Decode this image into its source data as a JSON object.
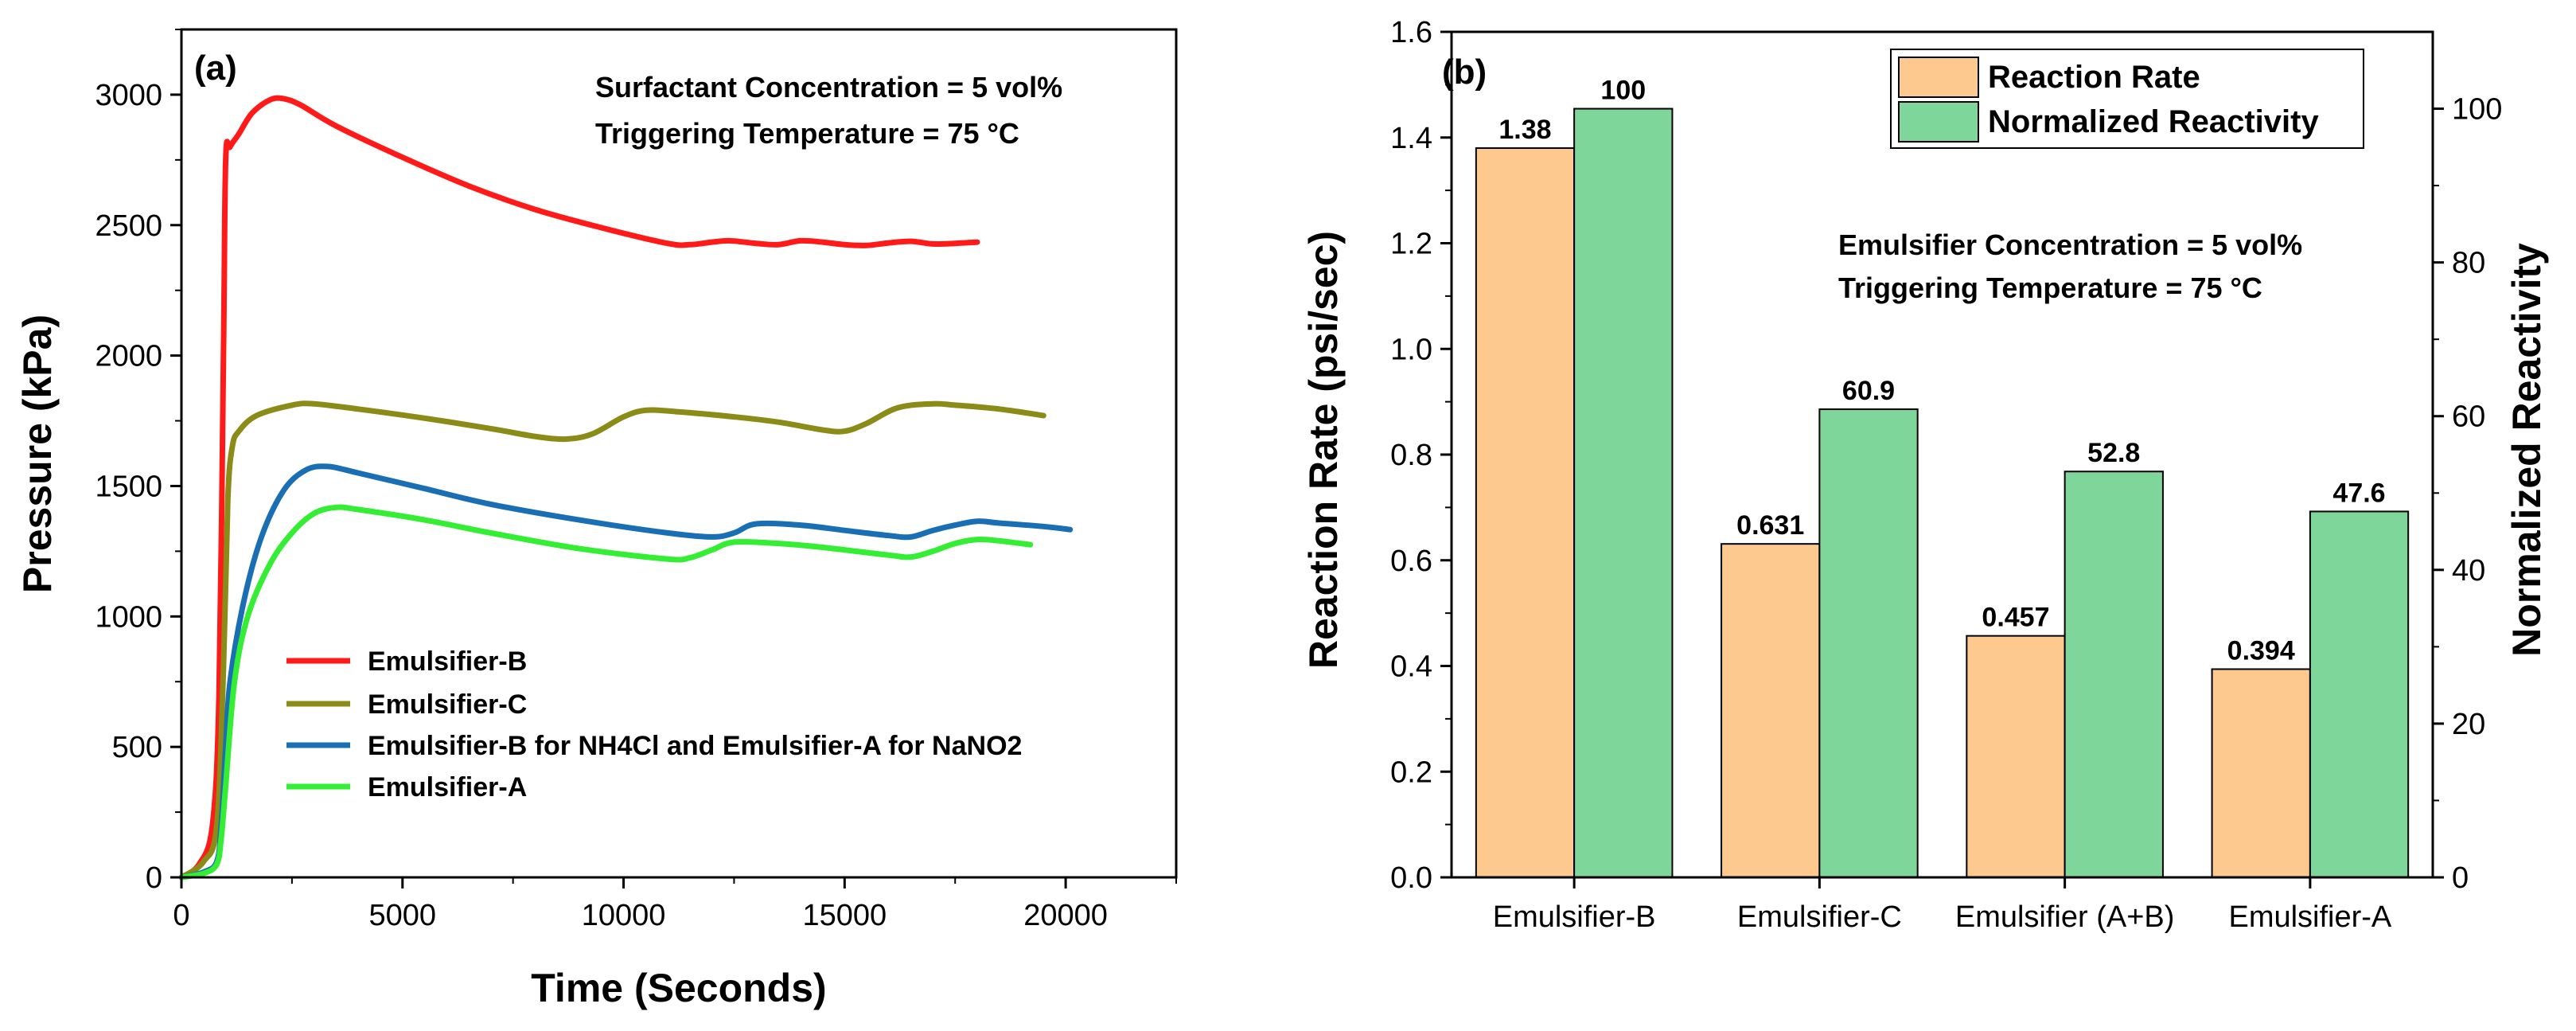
{
  "chart_data": [
    {
      "type": "line",
      "panel_label": "(a)",
      "xlabel": "Time (Seconds)",
      "ylabel": "Pressure (kPa)",
      "xlim": [
        0,
        22500
      ],
      "ylim": [
        0,
        3250
      ],
      "xticks": [
        0,
        5000,
        10000,
        15000,
        20000
      ],
      "yticks": [
        0,
        500,
        1000,
        1500,
        2000,
        2500,
        3000
      ],
      "annotations": [
        "Surfactant Concentration = 5 vol%",
        "Triggering Temperature = 75 °C"
      ],
      "series": [
        {
          "name": "Emulsifier-B",
          "color": "#ff1a1a",
          "points": [
            [
              0,
              0
            ],
            [
              400,
              50
            ],
            [
              700,
              200
            ],
            [
              850,
              700
            ],
            [
              950,
              2000
            ],
            [
              1000,
              2750
            ],
            [
              1100,
              2800
            ],
            [
              1300,
              2850
            ],
            [
              1600,
              2930
            ],
            [
              2000,
              2980
            ],
            [
              2300,
              2985
            ],
            [
              2700,
              2960
            ],
            [
              3500,
              2880
            ],
            [
              5000,
              2760
            ],
            [
              6500,
              2650
            ],
            [
              8000,
              2560
            ],
            [
              9500,
              2490
            ],
            [
              11000,
              2430
            ],
            [
              11500,
              2425
            ],
            [
              12000,
              2435
            ],
            [
              12400,
              2440
            ],
            [
              13000,
              2430
            ],
            [
              13500,
              2425
            ],
            [
              14000,
              2440
            ],
            [
              14500,
              2435
            ],
            [
              15000,
              2425
            ],
            [
              15500,
              2422
            ],
            [
              16000,
              2432
            ],
            [
              16500,
              2438
            ],
            [
              17000,
              2428
            ],
            [
              17500,
              2430
            ],
            [
              18000,
              2435
            ]
          ]
        },
        {
          "name": "Emulsifier-C",
          "color": "#8b8b17",
          "points": [
            [
              0,
              0
            ],
            [
              500,
              60
            ],
            [
              800,
              200
            ],
            [
              950,
              800
            ],
            [
              1050,
              1450
            ],
            [
              1150,
              1650
            ],
            [
              1300,
              1710
            ],
            [
              1700,
              1770
            ],
            [
              2500,
              1810
            ],
            [
              3000,
              1815
            ],
            [
              4000,
              1795
            ],
            [
              5500,
              1760
            ],
            [
              7000,
              1720
            ],
            [
              8000,
              1690
            ],
            [
              8700,
              1680
            ],
            [
              9300,
              1700
            ],
            [
              10000,
              1765
            ],
            [
              10500,
              1790
            ],
            [
              11200,
              1785
            ],
            [
              12500,
              1765
            ],
            [
              13500,
              1745
            ],
            [
              14500,
              1715
            ],
            [
              15000,
              1710
            ],
            [
              15500,
              1740
            ],
            [
              16200,
              1800
            ],
            [
              17000,
              1815
            ],
            [
              17500,
              1810
            ],
            [
              18500,
              1795
            ],
            [
              19500,
              1770
            ]
          ]
        },
        {
          "name": "Emulsifier-B for NH4Cl and Emulsifier-A for NaNO2",
          "color": "#1a6eb3",
          "points": [
            [
              0,
              0
            ],
            [
              500,
              20
            ],
            [
              800,
              60
            ],
            [
              900,
              200
            ],
            [
              1000,
              500
            ],
            [
              1100,
              750
            ],
            [
              1400,
              1050
            ],
            [
              1800,
              1300
            ],
            [
              2300,
              1480
            ],
            [
              2800,
              1560
            ],
            [
              3300,
              1575
            ],
            [
              4000,
              1550
            ],
            [
              5500,
              1490
            ],
            [
              7000,
              1430
            ],
            [
              9000,
              1370
            ],
            [
              11000,
              1320
            ],
            [
              12000,
              1305
            ],
            [
              12500,
              1320
            ],
            [
              13000,
              1355
            ],
            [
              14000,
              1350
            ],
            [
              15000,
              1330
            ],
            [
              16000,
              1310
            ],
            [
              16500,
              1305
            ],
            [
              17000,
              1330
            ],
            [
              17500,
              1350
            ],
            [
              18000,
              1365
            ],
            [
              18500,
              1358
            ],
            [
              19500,
              1345
            ],
            [
              20100,
              1333
            ]
          ]
        },
        {
          "name": "Emulsifier-A",
          "color": "#33ee33",
          "points": [
            [
              0,
              0
            ],
            [
              500,
              15
            ],
            [
              800,
              50
            ],
            [
              900,
              150
            ],
            [
              1000,
              350
            ],
            [
              1200,
              750
            ],
            [
              1500,
              1000
            ],
            [
              2000,
              1200
            ],
            [
              2500,
              1320
            ],
            [
              3000,
              1395
            ],
            [
              3500,
              1418
            ],
            [
              4000,
              1410
            ],
            [
              5500,
              1370
            ],
            [
              7000,
              1320
            ],
            [
              9000,
              1260
            ],
            [
              11000,
              1220
            ],
            [
              11500,
              1225
            ],
            [
              12000,
              1255
            ],
            [
              12500,
              1285
            ],
            [
              13500,
              1280
            ],
            [
              14500,
              1265
            ],
            [
              16000,
              1235
            ],
            [
              16500,
              1228
            ],
            [
              17000,
              1250
            ],
            [
              17500,
              1280
            ],
            [
              18000,
              1295
            ],
            [
              18500,
              1290
            ],
            [
              19200,
              1275
            ]
          ]
        }
      ]
    },
    {
      "type": "bar",
      "panel_label": "(b)",
      "categories": [
        "Emulsifier-B",
        "Emulsifier-C",
        "Emulsifier (A+B)",
        "Emulsifier-A"
      ],
      "ylabel": "Reaction Rate (psi/sec)",
      "ylabel_right": "Normalized Reactivity",
      "ylim": [
        0,
        1.6
      ],
      "ylim_right": [
        0,
        110
      ],
      "yticks": [
        "0.0",
        "0.2",
        "0.4",
        "0.6",
        "0.8",
        "1.0",
        "1.2",
        "1.4",
        "1.6"
      ],
      "yticks_right": [
        "0",
        "20",
        "40",
        "60",
        "80",
        "100"
      ],
      "annotations": [
        "Emulsifier Concentration = 5 vol%",
        "Triggering Temperature = 75 °C"
      ],
      "series": [
        {
          "name": "Reaction Rate",
          "axis": "left",
          "color": "#fdc98f",
          "values": [
            1.38,
            0.631,
            0.457,
            0.394
          ],
          "labels": [
            "1.38",
            "0.631",
            "0.457",
            "0.394"
          ]
        },
        {
          "name": "Normalized Reactivity",
          "axis": "right",
          "color": "#7ed69a",
          "values": [
            100,
            60.9,
            52.8,
            47.6
          ],
          "labels": [
            "100",
            "60.9",
            "52.8",
            "47.6"
          ]
        }
      ]
    }
  ]
}
